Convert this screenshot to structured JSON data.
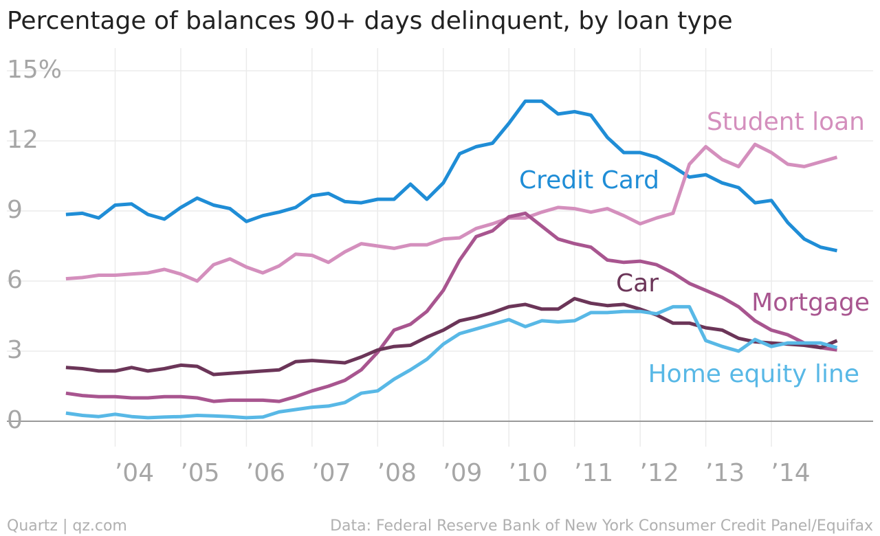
{
  "chart_data": {
    "type": "line",
    "title": "Percentage of balances 90+ days delinquent, by loan type",
    "source": "Data: Federal Reserve Bank of New York Consumer Credit Panel/Equifax",
    "credit": "Quartz | qz.com",
    "x": [
      2003.25,
      2003.5,
      2003.75,
      2004,
      2004.25,
      2004.5,
      2004.75,
      2005,
      2005.25,
      2005.5,
      2005.75,
      2006,
      2006.25,
      2006.5,
      2006.75,
      2007,
      2007.25,
      2007.5,
      2007.75,
      2008,
      2008.25,
      2008.5,
      2008.75,
      2009,
      2009.25,
      2009.5,
      2009.75,
      2010,
      2010.25,
      2010.5,
      2010.75,
      2011,
      2011.25,
      2011.5,
      2011.75,
      2012,
      2012.25,
      2012.5,
      2012.75,
      2013,
      2013.25,
      2013.5,
      2013.75,
      2014,
      2014.25,
      2014.5,
      2014.75,
      2015
    ],
    "xlim": [
      2002.35,
      2015.55
    ],
    "xticks": [
      {
        "value": 2004,
        "label": "’04"
      },
      {
        "value": 2005,
        "label": "’05"
      },
      {
        "value": 2006,
        "label": "’06"
      },
      {
        "value": 2007,
        "label": "’07"
      },
      {
        "value": 2008,
        "label": "’08"
      },
      {
        "value": 2009,
        "label": "’09"
      },
      {
        "value": 2010,
        "label": "’10"
      },
      {
        "value": 2011,
        "label": "’11"
      },
      {
        "value": 2012,
        "label": "’12"
      },
      {
        "value": 2013,
        "label": "’13"
      },
      {
        "value": 2014,
        "label": "’14"
      }
    ],
    "ylim": [
      0,
      15
    ],
    "yticks": [
      0,
      3,
      6,
      9,
      12,
      {
        "value": 15,
        "label": "15%"
      }
    ],
    "grid": true,
    "series": [
      {
        "name": "Credit Card",
        "color": "#1f8dd6",
        "values": [
          8.85,
          8.9,
          8.7,
          9.25,
          9.3,
          8.85,
          8.65,
          9.15,
          9.55,
          9.25,
          9.1,
          8.55,
          8.8,
          8.95,
          9.15,
          9.65,
          9.75,
          9.4,
          9.35,
          9.5,
          9.5,
          10.15,
          9.5,
          10.2,
          11.45,
          11.75,
          11.9,
          12.75,
          13.7,
          13.7,
          13.15,
          13.25,
          13.1,
          12.15,
          11.5,
          11.5,
          11.3,
          10.9,
          10.45,
          10.55,
          10.2,
          10.0,
          9.35,
          9.45,
          8.5,
          7.8,
          7.45,
          7.3
        ]
      },
      {
        "name": "Student loan",
        "color": "#d48fbd",
        "values": [
          6.1,
          6.15,
          6.25,
          6.25,
          6.3,
          6.35,
          6.5,
          6.3,
          6.0,
          6.7,
          6.95,
          6.6,
          6.35,
          6.65,
          7.15,
          7.1,
          6.8,
          7.25,
          7.6,
          7.5,
          7.4,
          7.55,
          7.55,
          7.8,
          7.85,
          8.25,
          8.45,
          8.7,
          8.7,
          8.95,
          9.15,
          9.1,
          8.95,
          9.1,
          8.8,
          8.45,
          8.7,
          8.9,
          11.0,
          11.75,
          11.2,
          10.9,
          11.85,
          11.5,
          11.0,
          10.9,
          11.1,
          11.3
        ]
      },
      {
        "name": "Mortgage",
        "color": "#a8558f",
        "values": [
          1.2,
          1.1,
          1.05,
          1.05,
          1.0,
          1.0,
          1.05,
          1.05,
          1.0,
          0.85,
          0.9,
          0.9,
          0.9,
          0.85,
          1.05,
          1.3,
          1.5,
          1.75,
          2.2,
          2.95,
          3.9,
          4.15,
          4.7,
          5.6,
          6.9,
          7.9,
          8.15,
          8.75,
          8.9,
          8.35,
          7.8,
          7.6,
          7.45,
          6.9,
          6.8,
          6.85,
          6.7,
          6.35,
          5.9,
          5.6,
          5.3,
          4.9,
          4.3,
          3.9,
          3.7,
          3.35,
          3.15,
          3.05
        ]
      },
      {
        "name": "Car",
        "color": "#6b3558",
        "values": [
          2.3,
          2.25,
          2.15,
          2.15,
          2.3,
          2.15,
          2.25,
          2.4,
          2.35,
          2.0,
          2.05,
          2.1,
          2.15,
          2.2,
          2.55,
          2.6,
          2.55,
          2.5,
          2.75,
          3.05,
          3.2,
          3.25,
          3.6,
          3.9,
          4.3,
          4.45,
          4.65,
          4.9,
          5.0,
          4.8,
          4.8,
          5.25,
          5.05,
          4.95,
          5.0,
          4.8,
          4.55,
          4.2,
          4.2,
          4.0,
          3.9,
          3.55,
          3.4,
          3.35,
          3.3,
          3.25,
          3.15,
          3.45
        ]
      },
      {
        "name": "Home equity line",
        "color": "#58b8e6",
        "values": [
          0.35,
          0.25,
          0.2,
          0.3,
          0.2,
          0.15,
          0.18,
          0.2,
          0.25,
          0.23,
          0.2,
          0.15,
          0.18,
          0.4,
          0.5,
          0.6,
          0.65,
          0.8,
          1.2,
          1.3,
          1.8,
          2.2,
          2.65,
          3.3,
          3.75,
          3.95,
          4.15,
          4.35,
          4.05,
          4.3,
          4.25,
          4.3,
          4.65,
          4.65,
          4.7,
          4.7,
          4.6,
          4.9,
          4.9,
          3.45,
          3.2,
          3.0,
          3.5,
          3.2,
          3.35,
          3.35,
          3.35,
          3.15
        ]
      }
    ]
  }
}
